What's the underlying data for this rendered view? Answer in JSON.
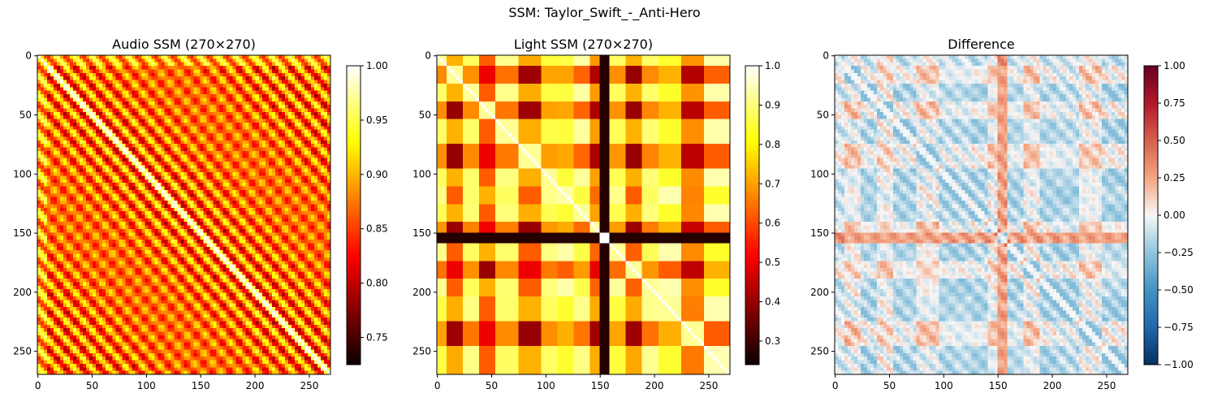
{
  "figure": {
    "suptitle": "SSM: Taylor_Swift_-_Anti-Hero"
  },
  "chart_data": [
    {
      "type": "heatmap",
      "title": "Audio SSM (270×270)",
      "size": 270,
      "xlim": [
        0,
        270
      ],
      "ylim": [
        270,
        0
      ],
      "xticks": [
        0,
        50,
        100,
        150,
        200,
        250
      ],
      "yticks": [
        0,
        50,
        100,
        150,
        200,
        250
      ],
      "colormap": "hot",
      "colorbar": {
        "min": 0.725,
        "max": 1.0,
        "ticks": [
          "0.75",
          "0.80",
          "0.85",
          "0.90",
          "0.95",
          "1.00"
        ],
        "tick_values": [
          0.75,
          0.8,
          0.85,
          0.9,
          0.95,
          1.0
        ]
      },
      "value_range": [
        0.725,
        1.0
      ]
    },
    {
      "type": "heatmap",
      "title": "Light SSM (270×270)",
      "size": 270,
      "xlim": [
        0,
        270
      ],
      "ylim": [
        270,
        0
      ],
      "xticks": [
        0,
        50,
        100,
        150,
        200,
        250
      ],
      "yticks": [
        0,
        50,
        100,
        150,
        200,
        250
      ],
      "colormap": "hot",
      "colorbar": {
        "min": 0.24,
        "max": 1.0,
        "ticks": [
          "0.3",
          "0.4",
          "0.5",
          "0.6",
          "0.7",
          "0.8",
          "0.9",
          "1.0"
        ],
        "tick_values": [
          0.3,
          0.4,
          0.5,
          0.6,
          0.7,
          0.8,
          0.9,
          1.0
        ]
      },
      "value_range": [
        0.24,
        1.0
      ],
      "block_boundaries": [
        0,
        10,
        25,
        40,
        55,
        75,
        95,
        110,
        125,
        140,
        150,
        160,
        175,
        190,
        205,
        225,
        245,
        270
      ],
      "dark_bands": [
        155
      ]
    },
    {
      "type": "heatmap",
      "title": "Difference",
      "size": 270,
      "xlim": [
        0,
        270
      ],
      "ylim": [
        270,
        0
      ],
      "xticks": [
        0,
        50,
        100,
        150,
        200,
        250
      ],
      "yticks": [
        0,
        50,
        100,
        150,
        200,
        250
      ],
      "colormap": "RdBu_r",
      "colorbar": {
        "min": -1.0,
        "max": 1.0,
        "ticks": [
          "1.00",
          "0.75",
          "0.50",
          "0.25",
          "0.00",
          "−0.25",
          "−0.50",
          "−0.75",
          "−1.00"
        ],
        "tick_values": [
          1.0,
          0.75,
          0.5,
          0.25,
          0.0,
          -0.25,
          -0.5,
          -0.75,
          -1.0
        ]
      },
      "value_range": [
        -0.25,
        0.6
      ]
    }
  ]
}
